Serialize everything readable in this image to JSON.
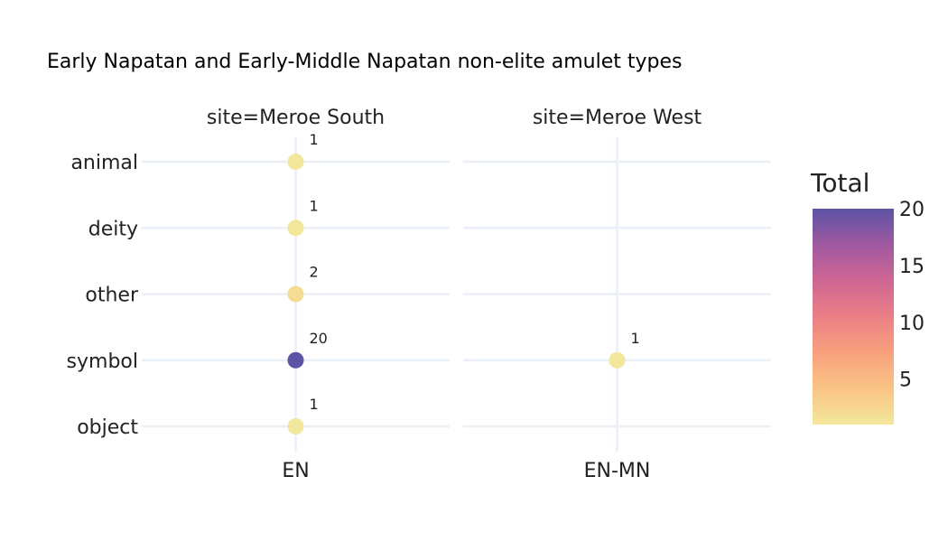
{
  "chart_data": {
    "type": "scatter",
    "title": "Early Napatan and Early-Middle Napatan non-elite amulet types",
    "facets": [
      {
        "label": "site=Meroe South",
        "x_categories": [
          "EN"
        ]
      },
      {
        "label": "site=Meroe West",
        "x_categories": [
          "EN-MN"
        ]
      }
    ],
    "y_categories": [
      "animal",
      "deity",
      "other",
      "symbol",
      "object"
    ],
    "points": [
      {
        "facet": 0,
        "x": "EN",
        "y": "animal",
        "total": 1
      },
      {
        "facet": 0,
        "x": "EN",
        "y": "deity",
        "total": 1
      },
      {
        "facet": 0,
        "x": "EN",
        "y": "other",
        "total": 2
      },
      {
        "facet": 0,
        "x": "EN",
        "y": "symbol",
        "total": 20
      },
      {
        "facet": 0,
        "x": "EN",
        "y": "object",
        "total": 1
      },
      {
        "facet": 1,
        "x": "EN-MN",
        "y": "symbol",
        "total": 1
      }
    ],
    "colorbar": {
      "title": "Total",
      "range": [
        1,
        20
      ],
      "ticks": [
        5,
        10,
        15,
        20
      ],
      "colorscale": [
        "#f3e79b",
        "#fac484",
        "#f8a07e",
        "#eb7f86",
        "#ce6693",
        "#a059a0",
        "#5c53a5"
      ]
    },
    "grid": true,
    "legend": "right"
  }
}
